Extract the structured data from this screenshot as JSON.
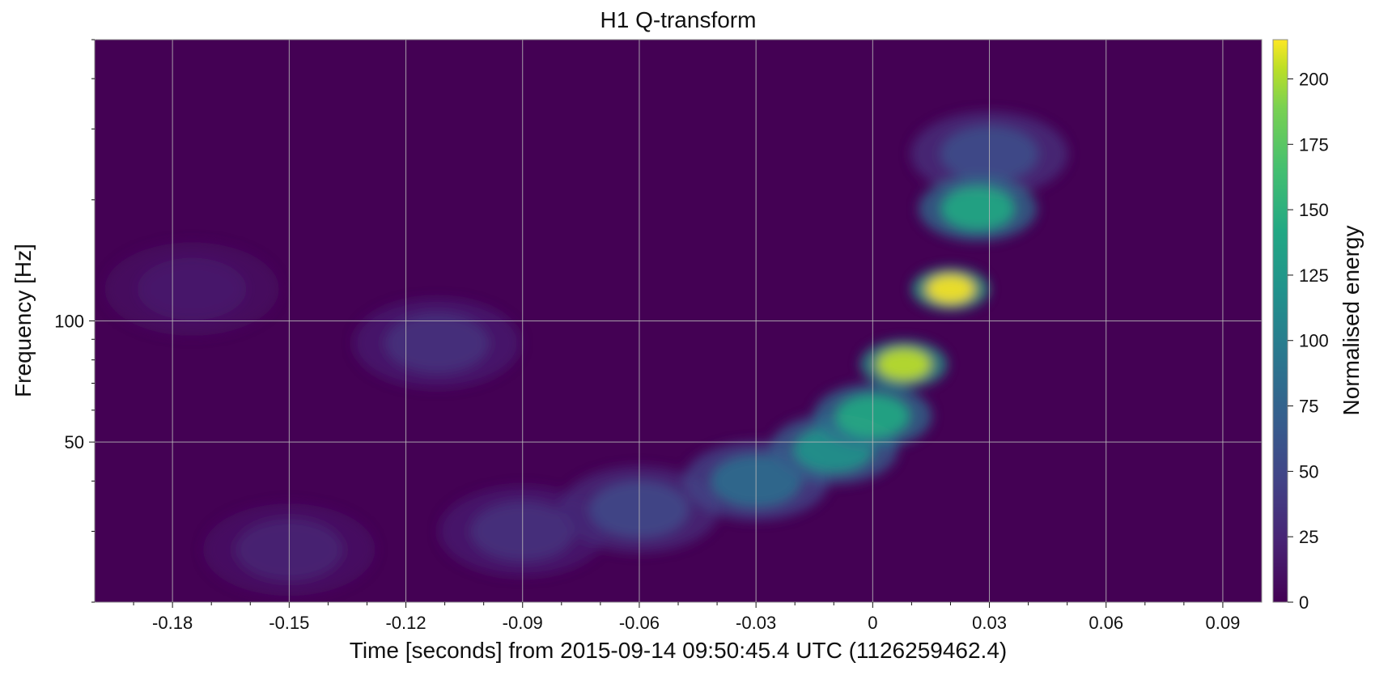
{
  "chart_data": {
    "type": "heatmap",
    "title": "H1 Q-transform",
    "xlabel": "Time [seconds] from 2015-09-14 09:50:45.4 UTC (1126259462.4)",
    "ylabel": "Frequency [Hz]",
    "xlim": [
      -0.2,
      0.1
    ],
    "ylim": [
      20,
      500
    ],
    "yscale": "log",
    "x_ticks": [
      -0.18,
      -0.15,
      -0.12,
      -0.09,
      -0.06,
      -0.03,
      0,
      0.03,
      0.06,
      0.09
    ],
    "x_tick_labels": [
      "-0.18",
      "-0.15",
      "-0.12",
      "-0.09",
      "-0.06",
      "-0.03",
      "0",
      "0.03",
      "0.06",
      "0.09"
    ],
    "y_ticks": [
      50,
      100
    ],
    "y_tick_labels": [
      "50",
      "100"
    ],
    "grid": true,
    "colormap": "viridis",
    "colorbar": {
      "label": "Normalised energy",
      "range": [
        0,
        215
      ],
      "ticks": [
        0,
        25,
        50,
        75,
        100,
        125,
        150,
        175,
        200
      ],
      "tick_labels": [
        "0",
        "25",
        "50",
        "75",
        "100",
        "125",
        "150",
        "175",
        "200"
      ]
    },
    "features": [
      {
        "t": -0.15,
        "f": 27,
        "energy": 20
      },
      {
        "t": -0.09,
        "f": 30,
        "energy": 30
      },
      {
        "t": -0.06,
        "f": 34,
        "energy": 45
      },
      {
        "t": -0.03,
        "f": 40,
        "energy": 75
      },
      {
        "t": -0.01,
        "f": 48,
        "energy": 110
      },
      {
        "t": 0.0,
        "f": 58,
        "energy": 130
      },
      {
        "t": 0.008,
        "f": 78,
        "energy": 195
      },
      {
        "t": 0.02,
        "f": 120,
        "energy": 215
      },
      {
        "t": 0.027,
        "f": 190,
        "energy": 130
      },
      {
        "t": 0.03,
        "f": 260,
        "energy": 50
      },
      {
        "t": -0.112,
        "f": 88,
        "energy": 30
      },
      {
        "t": -0.175,
        "f": 120,
        "energy": 15
      }
    ]
  }
}
